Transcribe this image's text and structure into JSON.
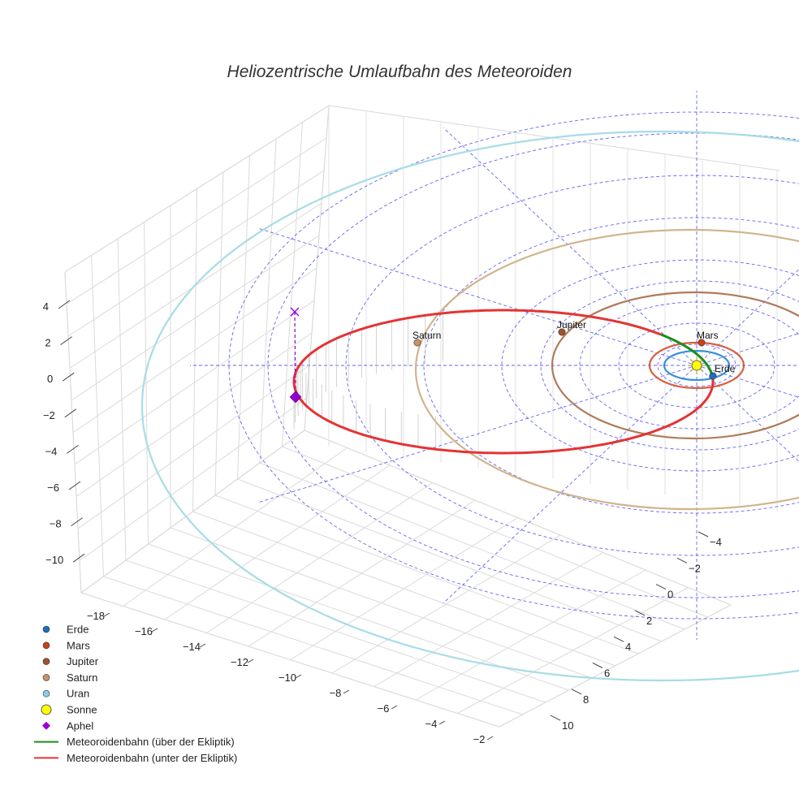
{
  "chart_data": {
    "type": "scatter",
    "title": "Heliozentrische Umlaufbahn des Meteoroiden",
    "axes": {
      "x": {
        "ticks": [
          "−18",
          "−16",
          "−14",
          "−12",
          "−10",
          "−8",
          "−6",
          "−4",
          "−2"
        ],
        "range": [
          -19,
          -1
        ]
      },
      "y": {
        "ticks": [
          "−4",
          "−2",
          "0",
          "2",
          "4",
          "6",
          "8",
          "10"
        ],
        "range": [
          -5,
          11
        ]
      },
      "z": {
        "ticks": [
          "4",
          "2",
          "0",
          "−2",
          "−4",
          "−6",
          "−8",
          "−10"
        ],
        "range": [
          -11,
          5
        ]
      }
    },
    "grid": true,
    "ecliptic_grid": {
      "style": "dashed",
      "color": "#4a4af0"
    },
    "planets": [
      {
        "name": "Erde",
        "color": "#1f6fb8",
        "orbit_color": "#3a8fd8",
        "orbit_radius_au": 1.0
      },
      {
        "name": "Mars",
        "color": "#c8411b",
        "orbit_color": "#d4603f",
        "orbit_radius_au": 1.52
      },
      {
        "name": "Jupiter",
        "color": "#a0522d",
        "orbit_color": "#b07a5a",
        "orbit_radius_au": 5.2
      },
      {
        "name": "Saturn",
        "color": "#c8916a",
        "orbit_color": "#d2b48c",
        "orbit_radius_au": 9.5
      },
      {
        "name": "Uran",
        "color": "#87ceeb",
        "orbit_color": "#a8dce6",
        "orbit_radius_au": 19.2
      }
    ],
    "sun": {
      "name": "Sonne",
      "color": "#ffff00"
    },
    "aphel": {
      "name": "Aphel",
      "color": "#9400d3"
    },
    "series": [
      {
        "name": "Meteoroidenbahn (über der Ekliptik)",
        "color": "#1a8f1a"
      },
      {
        "name": "Meteoroidenbahn (unter der Ekliptik)",
        "color": "#e53333"
      }
    ],
    "legend": {
      "placement": "bottom-left",
      "entries": [
        {
          "label": "Erde",
          "marker": "circle",
          "color": "#1f6fb8"
        },
        {
          "label": "Mars",
          "marker": "circle",
          "color": "#c8411b"
        },
        {
          "label": "Jupiter",
          "marker": "circle",
          "color": "#a0522d"
        },
        {
          "label": "Saturn",
          "marker": "circle",
          "color": "#c8916a"
        },
        {
          "label": "Uran",
          "marker": "circle",
          "color": "#87ceeb"
        },
        {
          "label": "Sonne",
          "marker": "circle-large",
          "color": "#ffff00"
        },
        {
          "label": "Aphel",
          "marker": "diamond",
          "color": "#9400d3"
        },
        {
          "label": "Meteoroidenbahn (über der Ekliptik)",
          "marker": "line",
          "color": "#1a8f1a"
        },
        {
          "label": "Meteoroidenbahn (unter der Ekliptik)",
          "marker": "line",
          "color": "#e53333"
        }
      ]
    }
  }
}
